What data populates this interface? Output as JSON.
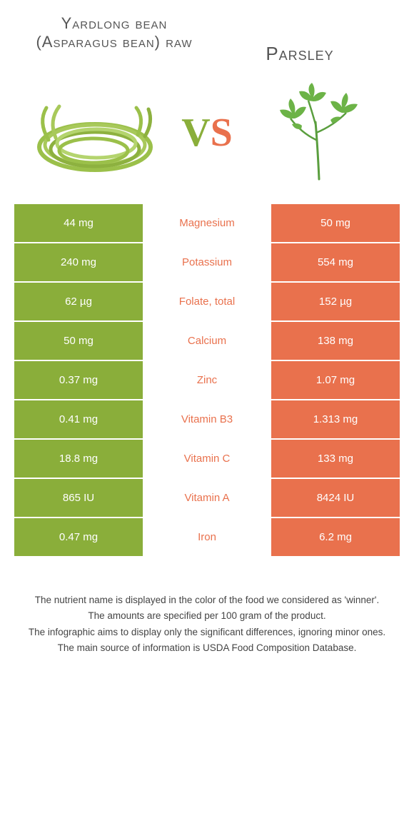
{
  "colors": {
    "green": "#8aae3a",
    "orange": "#e9714d",
    "text": "#555555"
  },
  "header": {
    "left_title": "Yardlong bean (Asparagus bean) raw",
    "right_title": "Parsley",
    "vs_v": "V",
    "vs_s": "S"
  },
  "rows": [
    {
      "left": "44 mg",
      "label": "Magnesium",
      "right": "50 mg",
      "winner": "right"
    },
    {
      "left": "240 mg",
      "label": "Potassium",
      "right": "554 mg",
      "winner": "right"
    },
    {
      "left": "62 µg",
      "label": "Folate, total",
      "right": "152 µg",
      "winner": "right"
    },
    {
      "left": "50 mg",
      "label": "Calcium",
      "right": "138 mg",
      "winner": "right"
    },
    {
      "left": "0.37 mg",
      "label": "Zinc",
      "right": "1.07 mg",
      "winner": "right"
    },
    {
      "left": "0.41 mg",
      "label": "Vitamin B3",
      "right": "1.313 mg",
      "winner": "right"
    },
    {
      "left": "18.8 mg",
      "label": "Vitamin C",
      "right": "133 mg",
      "winner": "right"
    },
    {
      "left": "865 IU",
      "label": "Vitamin A",
      "right": "8424 IU",
      "winner": "right"
    },
    {
      "left": "0.47 mg",
      "label": "Iron",
      "right": "6.2 mg",
      "winner": "right"
    }
  ],
  "footnotes": [
    "The nutrient name is displayed in the color of the food we considered as 'winner'.",
    "The amounts are specified per 100 gram of the product.",
    "The infographic aims to display only the significant differences, ignoring minor ones.",
    "The main source of information is USDA Food Composition Database."
  ]
}
